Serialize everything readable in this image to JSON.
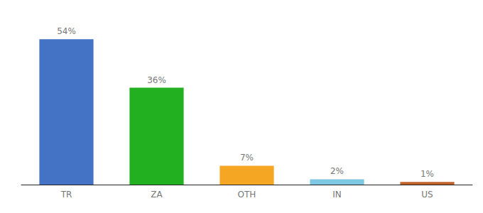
{
  "chart_data": {
    "type": "bar",
    "categories": [
      "TR",
      "ZA",
      "OTH",
      "IN",
      "US"
    ],
    "values": [
      54,
      36,
      7,
      2,
      1
    ],
    "value_labels": [
      "54%",
      "36%",
      "7%",
      "2%",
      "1%"
    ],
    "data_labels": true,
    "colors": [
      "#4472c4",
      "#22b020",
      "#f5a623",
      "#7ec8e3",
      "#c0622a"
    ],
    "ylim": [
      0,
      62
    ],
    "grid": false,
    "tick_labels": "x"
  }
}
